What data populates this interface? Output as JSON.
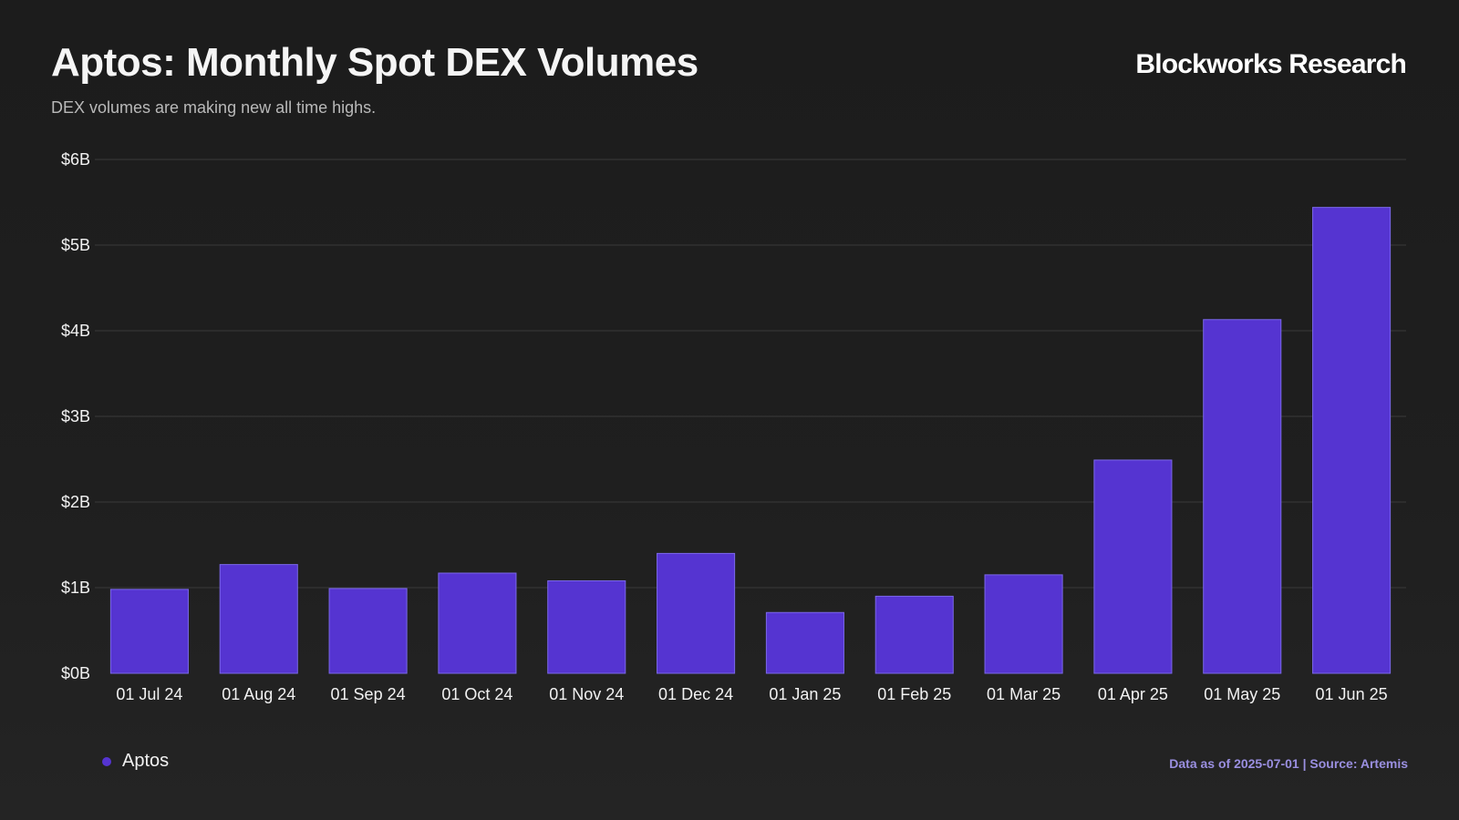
{
  "header": {
    "title": "Aptos: Monthly Spot DEX Volumes",
    "subtitle": "DEX volumes are making new all time highs.",
    "brand": "Blockworks Research"
  },
  "footer": {
    "source": "Data as of 2025-07-01 | Source: Artemis"
  },
  "colors": {
    "bar": "#5534d1",
    "bar_edge": "#7b68e8",
    "grid": "#3a3a3a",
    "legend_dot": "#5534d1"
  },
  "chart_data": {
    "type": "bar",
    "categories": [
      "01 Jul 24",
      "01 Aug 24",
      "01 Sep 24",
      "01 Oct 24",
      "01 Nov 24",
      "01 Dec 24",
      "01 Jan 25",
      "01 Feb 25",
      "01 Mar 25",
      "01 Apr 25",
      "01 May 25",
      "01 Jun 25"
    ],
    "series": [
      {
        "name": "Aptos",
        "values": [
          0.98,
          1.27,
          0.99,
          1.17,
          1.08,
          1.4,
          0.71,
          0.9,
          1.15,
          2.49,
          4.13,
          5.44
        ]
      }
    ],
    "unit": "B USD",
    "ylim": [
      0,
      6
    ],
    "yticks": [
      0,
      1,
      2,
      3,
      4,
      5,
      6
    ],
    "ytick_labels": [
      "$0B",
      "$1B",
      "$2B",
      "$3B",
      "$4B",
      "$5B",
      "$6B"
    ],
    "grid": true,
    "legend": "bottom-left"
  }
}
